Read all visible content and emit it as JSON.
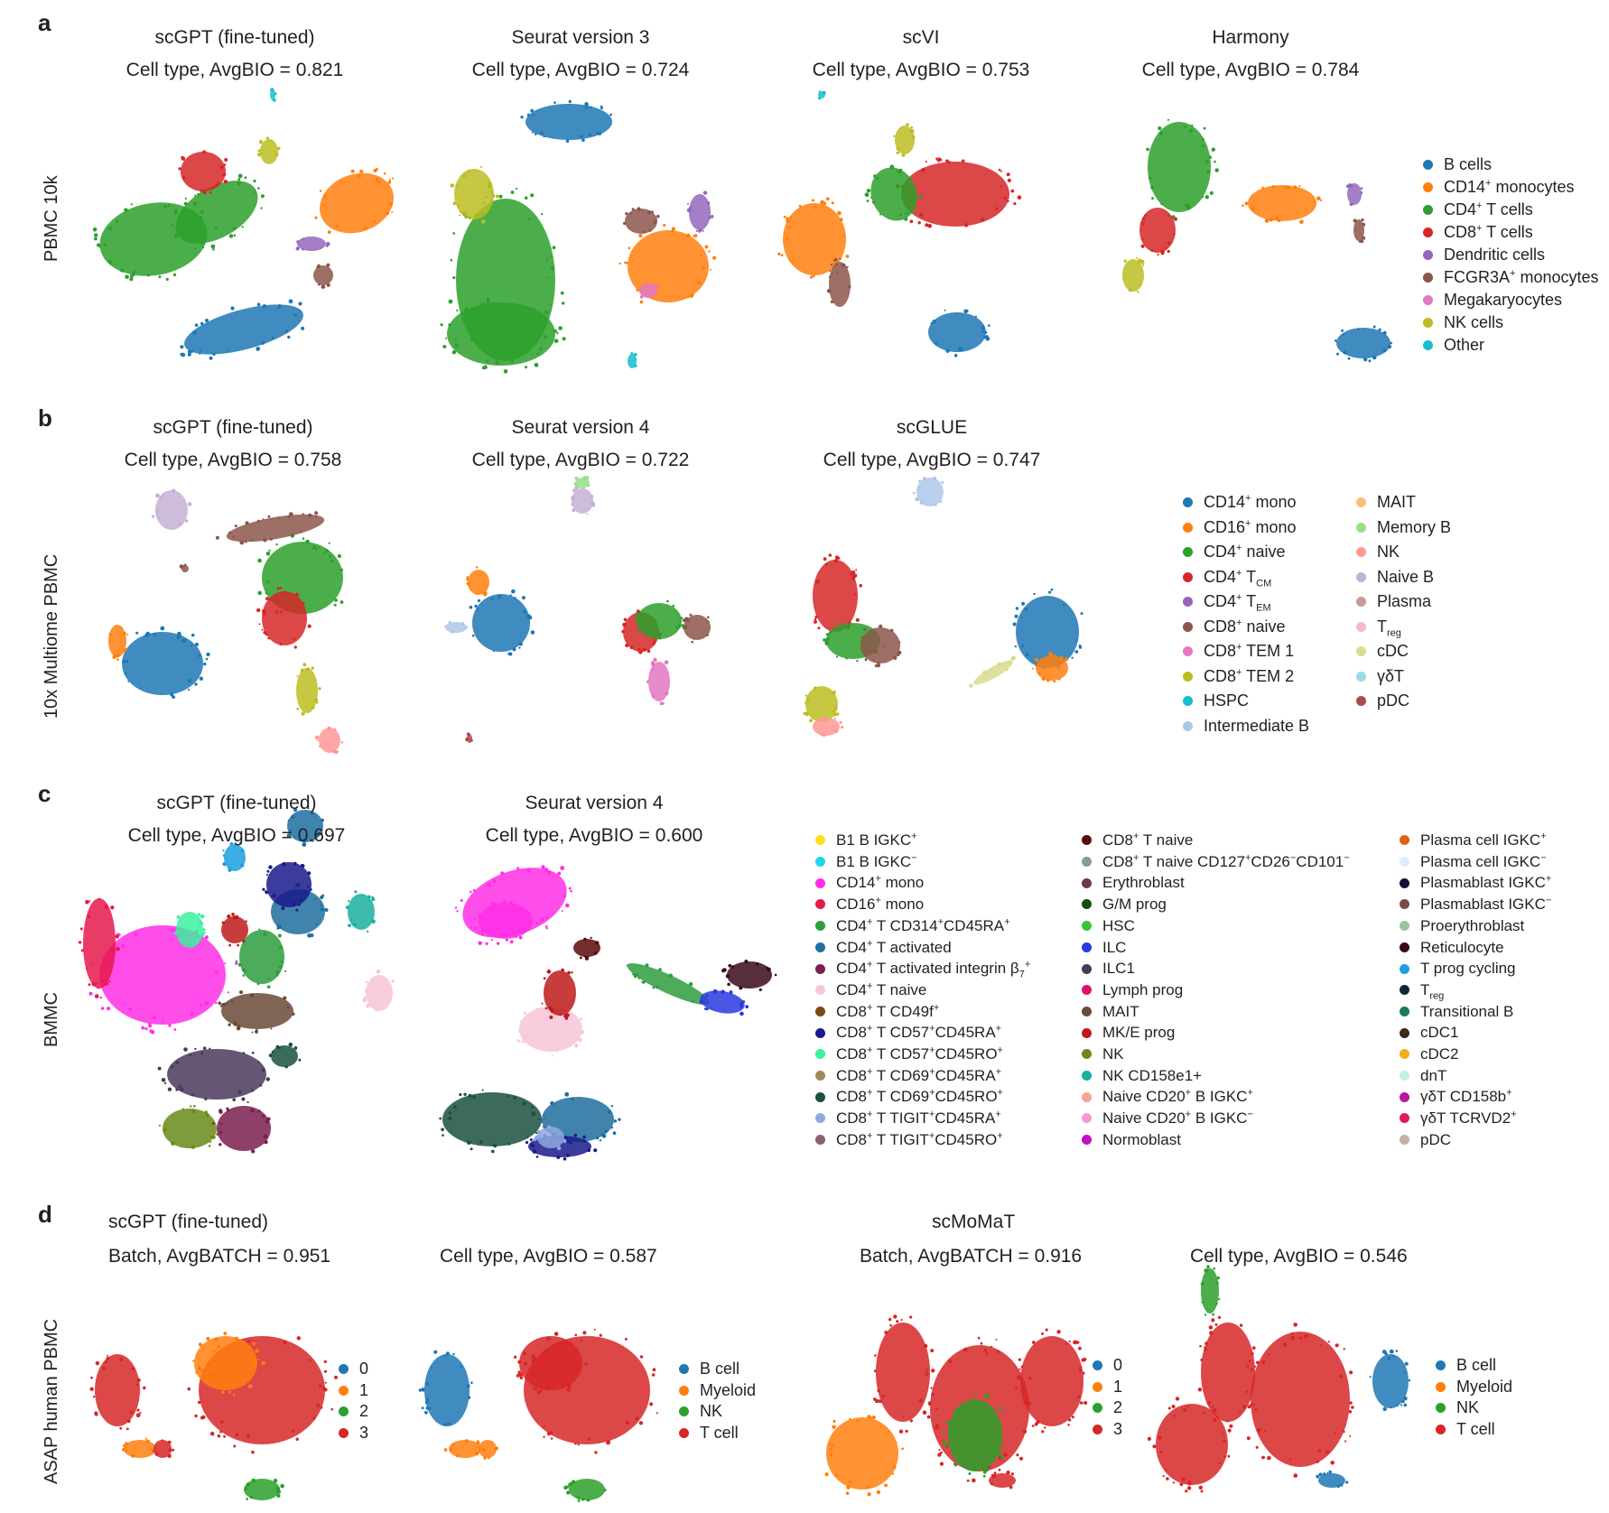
{
  "panels": {
    "a": {
      "letter": "a",
      "row_label": "PBMC 10k",
      "plots": [
        {
          "method": "scGPT (fine-tuned)",
          "metric": "Cell type, AvgBIO = 0.821"
        },
        {
          "method": "Seurat version 3",
          "metric": "Cell type, AvgBIO = 0.724"
        },
        {
          "method": "scVI",
          "metric": "Cell type, AvgBIO = 0.753"
        },
        {
          "method": "Harmony",
          "metric": "Cell type, AvgBIO = 0.784"
        }
      ],
      "legend": [
        {
          "pre": "B cells",
          "sup": "",
          "sub": "",
          "post": "",
          "color": "#1f77b4"
        },
        {
          "pre": "CD14",
          "sup": "+",
          "sub": "",
          "post": " monocytes",
          "color": "#ff7f0e"
        },
        {
          "pre": "CD4",
          "sup": "+",
          "sub": "",
          "post": " T cells",
          "color": "#2ca02c"
        },
        {
          "pre": "CD8",
          "sup": "+",
          "sub": "",
          "post": " T cells",
          "color": "#d62728"
        },
        {
          "pre": "Dendritic cells",
          "sup": "",
          "sub": "",
          "post": "",
          "color": "#9467bd"
        },
        {
          "pre": "FCGR3A",
          "sup": "+",
          "sub": "",
          "post": " monocytes",
          "color": "#8c564b"
        },
        {
          "pre": "Megakaryocytes",
          "sup": "",
          "sub": "",
          "post": "",
          "color": "#e377c2"
        },
        {
          "pre": "NK cells",
          "sup": "",
          "sub": "",
          "post": "",
          "color": "#bcbd22"
        },
        {
          "pre": "Other",
          "sup": "",
          "sub": "",
          "post": "",
          "color": "#17becf"
        }
      ]
    },
    "b": {
      "letter": "b",
      "row_label": "10x Multiome PBMC",
      "plots": [
        {
          "method": "scGPT (fine-tuned)",
          "metric": "Cell type, AvgBIO = 0.758"
        },
        {
          "method": "Seurat version 4",
          "metric": "Cell type, AvgBIO = 0.722"
        },
        {
          "method": "scGLUE",
          "metric": "Cell type, AvgBIO = 0.747"
        }
      ],
      "legend_col1": [
        {
          "pre": "CD14",
          "sup": "+",
          "sub": "",
          "post": " mono",
          "color": "#1f77b4"
        },
        {
          "pre": "CD16",
          "sup": "+",
          "sub": "",
          "post": " mono",
          "color": "#ff7f0e"
        },
        {
          "pre": "CD4",
          "sup": "+",
          "sub": "",
          "post": " naive",
          "color": "#2ca02c"
        },
        {
          "pre": "CD4",
          "sup": "+",
          "sub": "CM",
          "post": "",
          "mid": " T",
          "color": "#d62728"
        },
        {
          "pre": "CD4",
          "sup": "+",
          "sub": "EM",
          "post": "",
          "mid": " T",
          "color": "#9467bd"
        },
        {
          "pre": "CD8",
          "sup": "+",
          "sub": "",
          "post": " naive",
          "color": "#8c564b"
        },
        {
          "pre": "CD8",
          "sup": "+",
          "sub": "",
          "post": " TEM 1",
          "color": "#e377c2"
        },
        {
          "pre": "CD8",
          "sup": "+",
          "sub": "",
          "post": " TEM 2",
          "color": "#bcbd22"
        },
        {
          "pre": "HSPC",
          "sup": "",
          "sub": "",
          "post": "",
          "color": "#17becf"
        },
        {
          "pre": "Intermediate B",
          "sup": "",
          "sub": "",
          "post": "",
          "color": "#aec7e8"
        }
      ],
      "legend_col2": [
        {
          "pre": "MAIT",
          "sup": "",
          "sub": "",
          "post": "",
          "color": "#ffbb78"
        },
        {
          "pre": "Memory B",
          "sup": "",
          "sub": "",
          "post": "",
          "color": "#98df8a"
        },
        {
          "pre": "NK",
          "sup": "",
          "sub": "",
          "post": "",
          "color": "#ff9896"
        },
        {
          "pre": "Naive B",
          "sup": "",
          "sub": "",
          "post": "",
          "color": "#c5b0d5"
        },
        {
          "pre": "Plasma",
          "sup": "",
          "sub": "",
          "post": "",
          "color": "#c49c94"
        },
        {
          "pre": "T",
          "sup": "",
          "sub": "reg",
          "post": "",
          "color": "#f7b6d2"
        },
        {
          "pre": "cDC",
          "sup": "",
          "sub": "",
          "post": "",
          "color": "#dbdb8d"
        },
        {
          "pre": "γδT",
          "sup": "",
          "sub": "",
          "post": "",
          "color": "#9edae5"
        },
        {
          "pre": "pDC",
          "sup": "",
          "sub": "",
          "post": "",
          "color": "#ad494a"
        }
      ]
    },
    "c": {
      "letter": "c",
      "row_label": "BMMC",
      "plots": [
        {
          "method": "scGPT (fine-tuned)",
          "metric": "Cell type, AvgBIO = 0.697"
        },
        {
          "method": "Seurat version 4",
          "metric": "Cell type, AvgBIO = 0.600"
        }
      ],
      "legend_col1": [
        {
          "html": "B1 B IGKC<sup>+</sup>",
          "color": "#ffe119"
        },
        {
          "html": "B1 B IGKC<sup>−</sup>",
          "color": "#22d3ee"
        },
        {
          "html": "CD14<sup>+</sup> mono",
          "color": "#ff2ee6"
        },
        {
          "html": "CD16<sup>+</sup> mono",
          "color": "#e6194b"
        },
        {
          "html": "CD4<sup>+</sup> T CD314<sup>+</sup>CD45RA<sup>+</sup>",
          "color": "#2e9e3e"
        },
        {
          "html": "CD4<sup>+</sup> T activated",
          "color": "#1f6fa0"
        },
        {
          "html": "CD4<sup>+</sup> T activated integrin β<sub>7</sub><sup>+</sup>",
          "color": "#7a1f4f"
        },
        {
          "html": "CD4<sup>+</sup> T naive",
          "color": "#f7c6d9"
        },
        {
          "html": "CD8<sup>+</sup> T CD49f<sup>+</sup>",
          "color": "#7b4a12"
        },
        {
          "html": "CD8<sup>+</sup> T CD57<sup>+</sup>CD45RA<sup>+</sup>",
          "color": "#1a1a8c"
        },
        {
          "html": "CD8<sup>+</sup> T CD57<sup>+</sup>CD45RO<sup>+</sup>",
          "color": "#3cf0a0"
        },
        {
          "html": "CD8<sup>+</sup> T CD69<sup>+</sup>CD45RA<sup>+</sup>",
          "color": "#a08a5a"
        },
        {
          "html": "CD8<sup>+</sup> T CD69<sup>+</sup>CD45RO<sup>+</sup>",
          "color": "#1a5040"
        },
        {
          "html": "CD8<sup>+</sup> T TIGIT<sup>+</sup>CD45RA<sup>+</sup>",
          "color": "#8fa8e0"
        },
        {
          "html": "CD8<sup>+</sup> T TIGIT<sup>+</sup>CD45RO<sup>+</sup>",
          "color": "#8a6070"
        }
      ],
      "legend_col2": [
        {
          "html": "CD8<sup>+</sup> T naive",
          "color": "#5a0a0a"
        },
        {
          "html": "CD8<sup>+</sup> T naive CD127<sup>+</sup>CD26<sup>−</sup>CD101<sup>−</sup>",
          "color": "#8a9a9a"
        },
        {
          "html": "Erythroblast",
          "color": "#6a3a4a"
        },
        {
          "html": "G/M prog",
          "color": "#1a4a10"
        },
        {
          "html": "HSC",
          "color": "#3ac43a"
        },
        {
          "html": "ILC",
          "color": "#2a3ae0"
        },
        {
          "html": "ILC1",
          "color": "#4a3a5a"
        },
        {
          "html": "Lymph prog",
          "color": "#e0106a"
        },
        {
          "html": "MAIT",
          "color": "#6a4a3a"
        },
        {
          "html": "MK/E prog",
          "color": "#c01a1a"
        },
        {
          "html": "NK",
          "color": "#6a8a1a"
        },
        {
          "html": "NK CD158e1+",
          "color": "#1ab0a0"
        },
        {
          "html": "Naive CD20<sup>+</sup> B IGKC<sup>+</sup>",
          "color": "#f4a49a"
        },
        {
          "html": "Naive CD20<sup>+</sup> B IGKC<sup>−</sup>",
          "color": "#f49ad0"
        },
        {
          "html": "Normoblast",
          "color": "#c010c0"
        }
      ],
      "legend_col3": [
        {
          "html": "Plasma cell IGKC<sup>+</sup>",
          "color": "#e0601a"
        },
        {
          "html": "Plasma cell IGKC<sup>−</sup>",
          "color": "#e0ecf8"
        },
        {
          "html": "Plasmablast IGKC<sup>+</sup>",
          "color": "#10103a"
        },
        {
          "html": "Plasmablast IGKC<sup>−</sup>",
          "color": "#7a4a4a"
        },
        {
          "html": "Proerythroblast",
          "color": "#9ac49a"
        },
        {
          "html": "Reticulocyte",
          "color": "#3a0a1a"
        },
        {
          "html": "T prog cycling",
          "color": "#1aa0e0"
        },
        {
          "html": "T<sub>reg</sub>",
          "color": "#0a2a3a"
        },
        {
          "html": "Transitional B",
          "color": "#1a7a5a"
        },
        {
          "html": "cDC1",
          "color": "#3a2a1a"
        },
        {
          "html": "cDC2",
          "color": "#f0b01a"
        },
        {
          "html": "dnT",
          "color": "#c0f0e8"
        },
        {
          "html": "γδT CD158b<sup>+</sup>",
          "color": "#b01aa0"
        },
        {
          "html": "γδT TCRVD2<sup>+</sup>",
          "color": "#e01a5a"
        },
        {
          "html": "pDC",
          "color": "#c0b0a8"
        }
      ]
    },
    "d": {
      "letter": "d",
      "row_label": "ASAP human PBMC",
      "methods": [
        "scGPT (fine-tuned)",
        "scMoMaT"
      ],
      "plots": [
        {
          "metric": "Batch, AvgBATCH = 0.951"
        },
        {
          "metric": "Cell type, AvgBIO = 0.587"
        },
        {
          "metric": "Batch, AvgBATCH = 0.916"
        },
        {
          "metric": "Cell type, AvgBIO = 0.546"
        }
      ],
      "batch_legend": [
        {
          "label": "0",
          "color": "#1f77b4"
        },
        {
          "label": "1",
          "color": "#ff7f0e"
        },
        {
          "label": "2",
          "color": "#2ca02c"
        },
        {
          "label": "3",
          "color": "#d62728"
        }
      ],
      "celltype_legend": [
        {
          "label": "B cell",
          "color": "#1f77b4"
        },
        {
          "label": "Myeloid",
          "color": "#ff7f0e"
        },
        {
          "label": "NK",
          "color": "#2ca02c"
        },
        {
          "label": "T cell",
          "color": "#d62728"
        }
      ]
    }
  },
  "chart_data": [
    {
      "type": "scatter",
      "title": "scGPT (fine-tuned)",
      "subtitle": "Cell type, AvgBIO = 0.821",
      "dataset": "PBMC 10k",
      "metric": "AvgBIO",
      "value": 0.821
    },
    {
      "type": "scatter",
      "title": "Seurat version 3",
      "subtitle": "Cell type, AvgBIO = 0.724",
      "dataset": "PBMC 10k",
      "metric": "AvgBIO",
      "value": 0.724
    },
    {
      "type": "scatter",
      "title": "scVI",
      "subtitle": "Cell type, AvgBIO = 0.753",
      "dataset": "PBMC 10k",
      "metric": "AvgBIO",
      "value": 0.753
    },
    {
      "type": "scatter",
      "title": "Harmony",
      "subtitle": "Cell type, AvgBIO = 0.784",
      "dataset": "PBMC 10k",
      "metric": "AvgBIO",
      "value": 0.784
    },
    {
      "type": "scatter",
      "title": "scGPT (fine-tuned)",
      "subtitle": "Cell type, AvgBIO = 0.758",
      "dataset": "10x Multiome PBMC",
      "metric": "AvgBIO",
      "value": 0.758
    },
    {
      "type": "scatter",
      "title": "Seurat version 4",
      "subtitle": "Cell type, AvgBIO = 0.722",
      "dataset": "10x Multiome PBMC",
      "metric": "AvgBIO",
      "value": 0.722
    },
    {
      "type": "scatter",
      "title": "scGLUE",
      "subtitle": "Cell type, AvgBIO = 0.747",
      "dataset": "10x Multiome PBMC",
      "metric": "AvgBIO",
      "value": 0.747
    },
    {
      "type": "scatter",
      "title": "scGPT (fine-tuned)",
      "subtitle": "Cell type, AvgBIO = 0.697",
      "dataset": "BMMC",
      "metric": "AvgBIO",
      "value": 0.697
    },
    {
      "type": "scatter",
      "title": "Seurat version 4",
      "subtitle": "Cell type, AvgBIO = 0.600",
      "dataset": "BMMC",
      "metric": "AvgBIO",
      "value": 0.6
    },
    {
      "type": "scatter",
      "title": "scGPT (fine-tuned)",
      "subtitle": "Batch, AvgBATCH = 0.951",
      "dataset": "ASAP human PBMC",
      "metric": "AvgBATCH",
      "value": 0.951
    },
    {
      "type": "scatter",
      "title": "scGPT (fine-tuned)",
      "subtitle": "Cell type, AvgBIO = 0.587",
      "dataset": "ASAP human PBMC",
      "metric": "AvgBIO",
      "value": 0.587
    },
    {
      "type": "scatter",
      "title": "scMoMaT",
      "subtitle": "Batch, AvgBATCH = 0.916",
      "dataset": "ASAP human PBMC",
      "metric": "AvgBATCH",
      "value": 0.916
    },
    {
      "type": "scatter",
      "title": "scMoMaT",
      "subtitle": "Cell type, AvgBIO = 0.546",
      "dataset": "ASAP human PBMC",
      "metric": "AvgBIO",
      "value": 0.546
    }
  ]
}
